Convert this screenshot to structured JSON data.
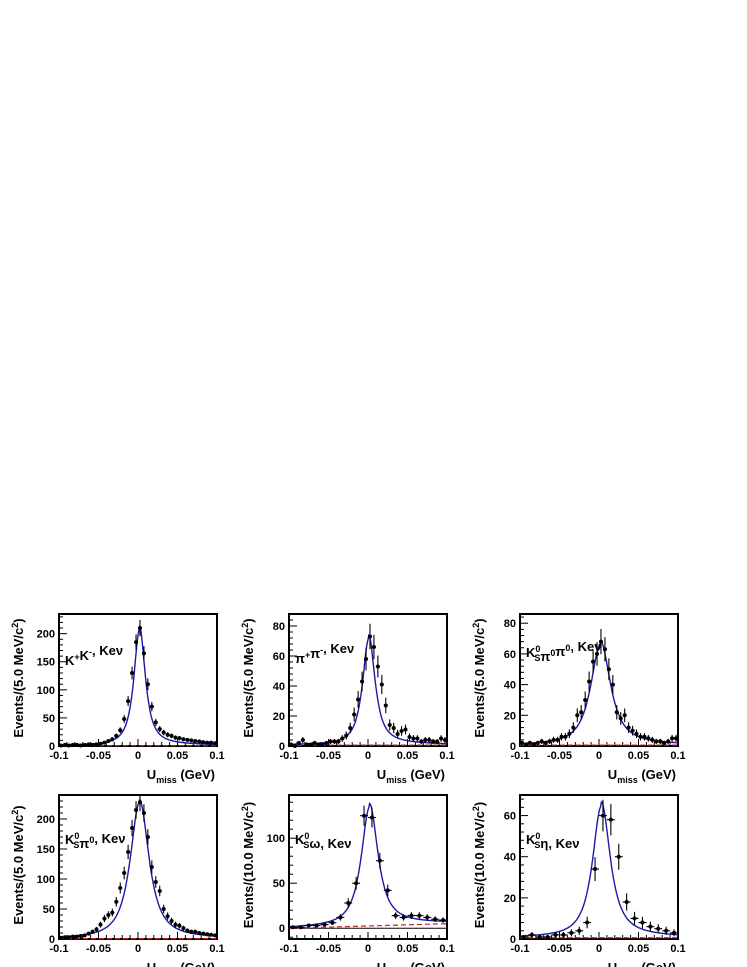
{
  "chart_data": [
    {
      "type": "scatter",
      "panel": "K+K-",
      "label_parts": [
        [
          "K"
        ],
        [
          "+",
          "sup"
        ],
        [
          "K"
        ],
        [
          "-",
          "sup"
        ],
        [
          ", Ke"
        ],
        [
          "ν"
        ]
      ],
      "xlabel": "U",
      "xlabel_sub": "miss",
      "xlabel_unit": " (GeV)",
      "ylabel": "Events/(5.0 MeV/c",
      "ylabel_sup": "2",
      "ylabel_end": ")",
      "xlim": [
        -0.1,
        0.1
      ],
      "ylim": [
        0,
        235
      ],
      "xticks": [
        "-0.1",
        "-0.05",
        "0",
        "0.05",
        "0.1"
      ],
      "yticks": [
        0,
        50,
        100,
        150,
        200
      ],
      "fit": {
        "amp": 205,
        "center": 0.002,
        "width": 0.011,
        "tail": 6,
        "tail_width": 0.06
      },
      "x": [
        -0.0975,
        -0.0925,
        -0.0875,
        -0.0825,
        -0.0775,
        -0.0725,
        -0.0675,
        -0.0625,
        -0.0575,
        -0.0525,
        -0.0475,
        -0.0425,
        -0.0375,
        -0.0325,
        -0.0275,
        -0.0225,
        -0.0175,
        -0.0125,
        -0.0075,
        -0.0025,
        0.0025,
        0.0075,
        0.0125,
        0.0175,
        0.0225,
        0.0275,
        0.0325,
        0.0375,
        0.0425,
        0.0475,
        0.0525,
        0.0575,
        0.0625,
        0.0675,
        0.0725,
        0.0775,
        0.0825,
        0.0875,
        0.0925,
        0.0975
      ],
      "y": [
        1,
        2,
        1,
        2,
        2,
        1,
        2,
        3,
        2,
        3,
        4,
        6,
        9,
        12,
        18,
        28,
        48,
        80,
        130,
        185,
        210,
        165,
        110,
        70,
        42,
        30,
        24,
        20,
        18,
        15,
        14,
        12,
        11,
        10,
        9,
        8,
        7,
        6,
        6,
        5
      ],
      "err": [
        1,
        1.4,
        1,
        1.4,
        1.4,
        1,
        1.4,
        1.7,
        1.4,
        1.7,
        2,
        2.4,
        3,
        3.5,
        4.2,
        5.3,
        6.9,
        8.9,
        11.4,
        13.6,
        14.5,
        12.8,
        10.5,
        8.4,
        6.5,
        5.5,
        4.9,
        4.5,
        4.2,
        3.9,
        3.7,
        3.5,
        3.3,
        3.2,
        3,
        2.8,
        2.6,
        2.4,
        2.4,
        2.2
      ]
    },
    {
      "type": "scatter",
      "panel": "pi+pi-",
      "label_parts": [
        [
          "π"
        ],
        [
          "+",
          "sup"
        ],
        [
          "π"
        ],
        [
          "-",
          "sup"
        ],
        [
          ", Ke"
        ],
        [
          "ν"
        ]
      ],
      "xlabel": "U",
      "xlabel_sub": "miss",
      "xlabel_unit": " (GeV)",
      "ylabel": "Events/(5.0 MeV/c",
      "ylabel_sup": "2",
      "ylabel_end": ")",
      "xlim": [
        -0.1,
        0.1
      ],
      "ylim": [
        0,
        88
      ],
      "xticks": [
        "-0.1",
        "-0.05",
        "0",
        "0.05",
        "0.1"
      ],
      "yticks": [
        0,
        20,
        40,
        60,
        80
      ],
      "fit": {
        "amp": 70,
        "center": 0.001,
        "width": 0.012,
        "tail": 3,
        "tail_width": 0.06
      },
      "x": [
        -0.0975,
        -0.0925,
        -0.0875,
        -0.0825,
        -0.0775,
        -0.0725,
        -0.0675,
        -0.0625,
        -0.0575,
        -0.0525,
        -0.0475,
        -0.0425,
        -0.0375,
        -0.0325,
        -0.0275,
        -0.0225,
        -0.0175,
        -0.0125,
        -0.0075,
        -0.0025,
        0.0025,
        0.0075,
        0.0125,
        0.0175,
        0.0225,
        0.0275,
        0.0325,
        0.0375,
        0.0425,
        0.0475,
        0.0525,
        0.0575,
        0.0625,
        0.0675,
        0.0725,
        0.0775,
        0.0825,
        0.0875,
        0.0925,
        0.0975
      ],
      "y": [
        1,
        0,
        2,
        4,
        1,
        1,
        2,
        1,
        1,
        2,
        3,
        3,
        3,
        5,
        7,
        12,
        21,
        31,
        43,
        58,
        73,
        66,
        53,
        41,
        27,
        14,
        12,
        8,
        10,
        11,
        6,
        5,
        5,
        3,
        4,
        4,
        3,
        3,
        5,
        4
      ],
      "err": [
        1,
        1,
        1.4,
        2,
        1,
        1,
        1.4,
        1,
        1,
        1.4,
        1.7,
        1.7,
        1.7,
        2.2,
        2.6,
        3.5,
        4.6,
        5.6,
        6.6,
        7.6,
        8.5,
        8.1,
        7.3,
        6.4,
        5.2,
        3.7,
        3.5,
        2.8,
        3.2,
        3.3,
        2.4,
        2.2,
        2.2,
        1.7,
        2,
        2,
        1.7,
        1.7,
        2.2,
        2
      ]
    },
    {
      "type": "scatter",
      "panel": "KS0pi0pi0",
      "label_parts": [
        [
          "K"
        ],
        [
          "0",
          "supsub"
        ],
        [
          "π"
        ],
        [
          "0",
          "sup"
        ],
        [
          "π"
        ],
        [
          "0",
          "sup"
        ],
        [
          ", Ke"
        ],
        [
          "ν"
        ]
      ],
      "xlabel": "U",
      "xlabel_sub": "miss",
      "xlabel_unit": " (GeV)",
      "ylabel": "Events/(5.0 MeV/c",
      "ylabel_sup": "2",
      "ylabel_end": ")",
      "xlim": [
        -0.1,
        0.1
      ],
      "ylim": [
        0,
        86
      ],
      "xticks": [
        "-0.1",
        "-0.05",
        "0",
        "0.05",
        "0.1"
      ],
      "yticks": [
        0,
        20,
        40,
        60,
        80
      ],
      "fit": {
        "amp": 65,
        "center": 0.002,
        "width": 0.019,
        "tail": 2.5,
        "tail_width": 0.07
      },
      "x": [
        -0.0975,
        -0.0925,
        -0.0875,
        -0.0825,
        -0.0775,
        -0.0725,
        -0.0675,
        -0.0625,
        -0.0575,
        -0.0525,
        -0.0475,
        -0.0425,
        -0.0375,
        -0.0325,
        -0.0275,
        -0.0225,
        -0.0175,
        -0.0125,
        -0.0075,
        -0.0025,
        0.0025,
        0.0075,
        0.0125,
        0.0175,
        0.0225,
        0.0275,
        0.0325,
        0.0375,
        0.0425,
        0.0475,
        0.0525,
        0.0575,
        0.0625,
        0.0675,
        0.0725,
        0.0775,
        0.0825,
        0.0875,
        0.0925,
        0.0975
      ],
      "y": [
        2,
        1,
        2,
        1,
        2,
        3,
        2,
        3,
        4,
        4,
        6,
        6,
        8,
        12,
        20,
        22,
        30,
        42,
        55,
        60,
        68,
        63,
        50,
        40,
        22,
        18,
        20,
        12,
        10,
        8,
        6,
        6,
        5,
        4,
        3,
        3,
        2,
        3,
        5,
        5
      ],
      "err": [
        1.4,
        1,
        1.4,
        1,
        1.4,
        1.7,
        1.4,
        1.7,
        2,
        2,
        2.4,
        2.4,
        2.8,
        3.5,
        4.5,
        4.7,
        5.5,
        6.5,
        7.4,
        7.7,
        8.2,
        7.9,
        7.1,
        6.3,
        4.7,
        4.2,
        4.5,
        3.5,
        3.2,
        2.8,
        2.4,
        2.4,
        2.2,
        2,
        1.7,
        1.7,
        1.4,
        1.7,
        2.2,
        2.2
      ]
    },
    {
      "type": "scatter",
      "panel": "KS0pi0",
      "label_parts": [
        [
          "K"
        ],
        [
          "0",
          "supsub"
        ],
        [
          "π"
        ],
        [
          "0",
          "sup"
        ],
        [
          ", Ke"
        ],
        [
          "ν"
        ]
      ],
      "xlabel": "U",
      "xlabel_sub": "miss",
      "xlabel_unit": " (GeV)",
      "ylabel": "Events/(5.0 MeV/c",
      "ylabel_sup": "2",
      "ylabel_end": ")",
      "xlim": [
        -0.1,
        0.1
      ],
      "ylim": [
        0,
        240
      ],
      "xticks": [
        "-0.1",
        "-0.05",
        "0",
        "0.05",
        "0.1"
      ],
      "yticks": [
        0,
        50,
        100,
        150,
        200
      ],
      "fit": {
        "amp": 225,
        "center": 0.002,
        "width": 0.018,
        "tail": 6,
        "tail_width": 0.07
      },
      "x": [
        -0.0975,
        -0.0925,
        -0.0875,
        -0.0825,
        -0.0775,
        -0.0725,
        -0.0675,
        -0.0625,
        -0.0575,
        -0.0525,
        -0.0475,
        -0.0425,
        -0.0375,
        -0.0325,
        -0.0275,
        -0.0225,
        -0.0175,
        -0.0125,
        -0.0075,
        -0.0025,
        0.0025,
        0.0075,
        0.0125,
        0.0175,
        0.0225,
        0.0275,
        0.0325,
        0.0375,
        0.0425,
        0.0475,
        0.0525,
        0.0575,
        0.0625,
        0.0675,
        0.0725,
        0.0775,
        0.0825,
        0.0875,
        0.0925,
        0.0975
      ],
      "y": [
        2,
        3,
        3,
        4,
        4,
        5,
        6,
        9,
        12,
        16,
        24,
        34,
        40,
        44,
        62,
        85,
        110,
        145,
        185,
        215,
        228,
        210,
        170,
        120,
        95,
        80,
        50,
        38,
        30,
        24,
        22,
        18,
        14,
        12,
        12,
        10,
        9,
        8,
        7,
        6
      ],
      "err": [
        1.4,
        1.7,
        1.7,
        2,
        2,
        2.2,
        2.4,
        3,
        3.5,
        4,
        4.9,
        5.8,
        6.3,
        6.6,
        7.9,
        9.2,
        10.5,
        12,
        13.6,
        14.7,
        15.1,
        14.5,
        13,
        11,
        9.7,
        8.9,
        7.1,
        6.2,
        5.5,
        4.9,
        4.7,
        4.2,
        3.7,
        3.5,
        3.5,
        3.2,
        3,
        2.8,
        2.6,
        2.4
      ]
    },
    {
      "type": "scatter",
      "panel": "KS0omega",
      "label_parts": [
        [
          "K"
        ],
        [
          "0",
          "supsub"
        ],
        [
          "ω"
        ],
        [
          ", Ke"
        ],
        [
          "ν"
        ]
      ],
      "xlabel": "U",
      "xlabel_sub": "miss",
      "xlabel_unit": " (GeV)",
      "ylabel": "Events/(10.0 MeV/c",
      "ylabel_sup": "2",
      "ylabel_end": ")",
      "xlim": [
        -0.1,
        0.1
      ],
      "ylim": [
        -12,
        148
      ],
      "xticks": [
        "-0.1",
        "-0.05",
        "0",
        "0.05",
        "0.1"
      ],
      "yticks": [
        0,
        50,
        100
      ],
      "fit": {
        "amp": 130,
        "center": 0.002,
        "width": 0.016,
        "tail": 6,
        "tail_width": 0.07
      },
      "bkg": {
        "from": 0,
        "to": 5
      },
      "x": [
        -0.095,
        -0.085,
        -0.075,
        -0.065,
        -0.055,
        -0.045,
        -0.035,
        -0.025,
        -0.015,
        -0.005,
        0.005,
        0.015,
        0.025,
        0.035,
        0.045,
        0.055,
        0.065,
        0.075,
        0.085,
        0.095
      ],
      "y": [
        1,
        1,
        3,
        3,
        4,
        6,
        12,
        28,
        50,
        125,
        123,
        75,
        42,
        14,
        12,
        14,
        14,
        12,
        10,
        9
      ],
      "err": [
        1,
        1,
        1.7,
        1.7,
        2,
        2.4,
        3.5,
        5.3,
        7.1,
        11.2,
        11.1,
        8.7,
        6.5,
        3.7,
        3.5,
        3.7,
        3.7,
        3.5,
        3.2,
        3
      ]
    },
    {
      "type": "scatter",
      "panel": "KS0eta",
      "label_parts": [
        [
          "K"
        ],
        [
          "0",
          "supsub"
        ],
        [
          "η"
        ],
        [
          ", Ke"
        ],
        [
          "ν"
        ]
      ],
      "xlabel": "U",
      "xlabel_sub": "miss",
      "xlabel_unit": " (GeV)",
      "ylabel": "Events/(10.0 MeV/c",
      "ylabel_sup": "2",
      "ylabel_end": ")",
      "xlim": [
        -0.1,
        0.1
      ],
      "ylim": [
        0,
        70
      ],
      "xticks": [
        "-0.1",
        "-0.05",
        "0",
        "0.05",
        "0.1"
      ],
      "yticks": [
        0,
        20,
        40,
        60
      ],
      "fit": {
        "amp": 63,
        "center": 0.003,
        "width": 0.017,
        "tail": 3,
        "tail_width": 0.07
      },
      "x": [
        -0.095,
        -0.085,
        -0.075,
        -0.065,
        -0.055,
        -0.045,
        -0.035,
        -0.025,
        -0.015,
        -0.005,
        0.005,
        0.015,
        0.025,
        0.035,
        0.045,
        0.055,
        0.065,
        0.075,
        0.085,
        0.095
      ],
      "y": [
        1,
        2,
        1,
        1,
        2,
        2,
        3,
        4,
        8,
        34,
        60,
        58,
        40,
        18,
        10,
        8,
        6,
        5,
        4,
        3
      ],
      "err": [
        1,
        1.4,
        1,
        1,
        1.4,
        1.4,
        1.7,
        2,
        2.8,
        5.8,
        7.7,
        7.6,
        6.3,
        4.2,
        3.2,
        2.8,
        2.4,
        2.2,
        2,
        1.7
      ]
    }
  ]
}
